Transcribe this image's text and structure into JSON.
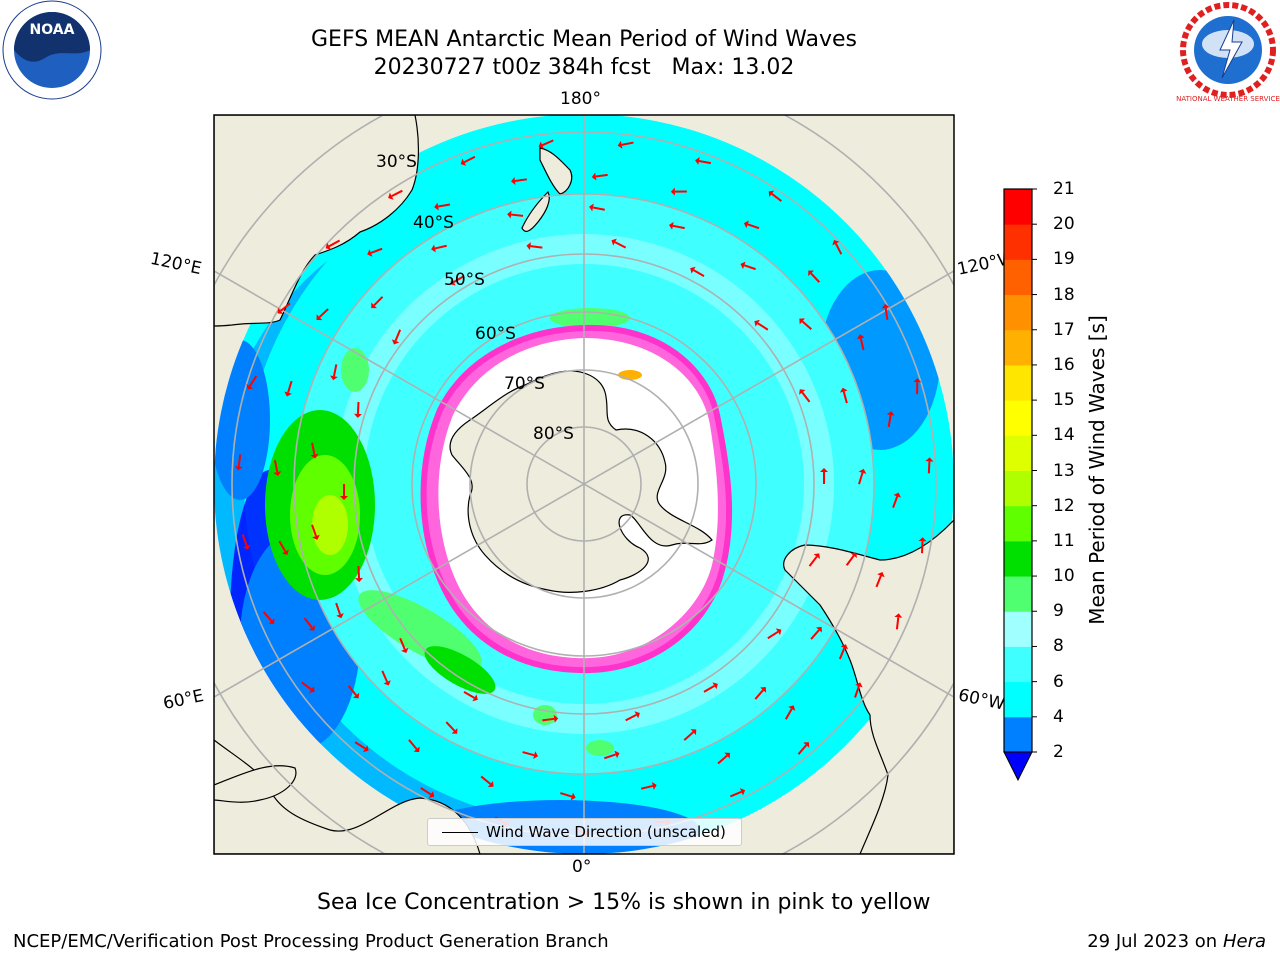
{
  "title": {
    "line1": "GEFS MEAN Antarctic Mean Period of Wind Waves",
    "line2": "20230727 t00z 384h fcst   Max: 13.02"
  },
  "logos": {
    "noaa_text": "NOAA",
    "nws_text": "NATIONAL WEATHER SERVICE"
  },
  "map": {
    "projection": "south-polar-stereographic",
    "colors": {
      "ocean_low": "#0000ff",
      "ocean_2_4": "#0080ff",
      "ocean_4_6": "#00ffff",
      "ocean_6_8": "#40ffff",
      "ocean_8_9": "#a0ffff",
      "green_9_10": "#50ff70",
      "green_10_11": "#00e000",
      "green_11_12": "#60ff00",
      "land": "#eeecdc",
      "ice_edge": "#ff33cc",
      "arrow": "#ff0000"
    },
    "lon_labels": {
      "top": "180°",
      "bottom": "0°",
      "left_upper": "120°E",
      "left_lower": "60°E",
      "right_upper": "120°W",
      "right_lower": "60°W"
    },
    "lat_labels": [
      "30°S",
      "40°S",
      "50°S",
      "60°S",
      "70°S",
      "80°S"
    ],
    "legend_label": "Wind Wave Direction (unscaled)"
  },
  "colorbar": {
    "label": "Mean Period of Wind Waves [s]",
    "levels": [
      2,
      4,
      6,
      8,
      9,
      10,
      11,
      12,
      13,
      14,
      15,
      16,
      17,
      18,
      19,
      20,
      21
    ],
    "colors": [
      "#0080ff",
      "#00ffff",
      "#40ffff",
      "#a0ffff",
      "#50ff70",
      "#00e000",
      "#60ff00",
      "#b0ff00",
      "#ddff00",
      "#ffff00",
      "#ffe600",
      "#ffb000",
      "#ff9000",
      "#ff6000",
      "#ff3000",
      "#ff0000"
    ],
    "extend_low_color": "#0000ff",
    "tick_labels": [
      "2",
      "4",
      "6",
      "8",
      "9",
      "10",
      "11",
      "12",
      "13",
      "14",
      "15",
      "16",
      "17",
      "18",
      "19",
      "20",
      "21"
    ]
  },
  "note": "Sea Ice Concentration > 15% is shown in pink to yellow",
  "footer": {
    "left": "NCEP/EMC/Verification Post Processing Product Generation Branch",
    "right_date": "29 Jul 2023 on ",
    "right_host": "Hera"
  }
}
